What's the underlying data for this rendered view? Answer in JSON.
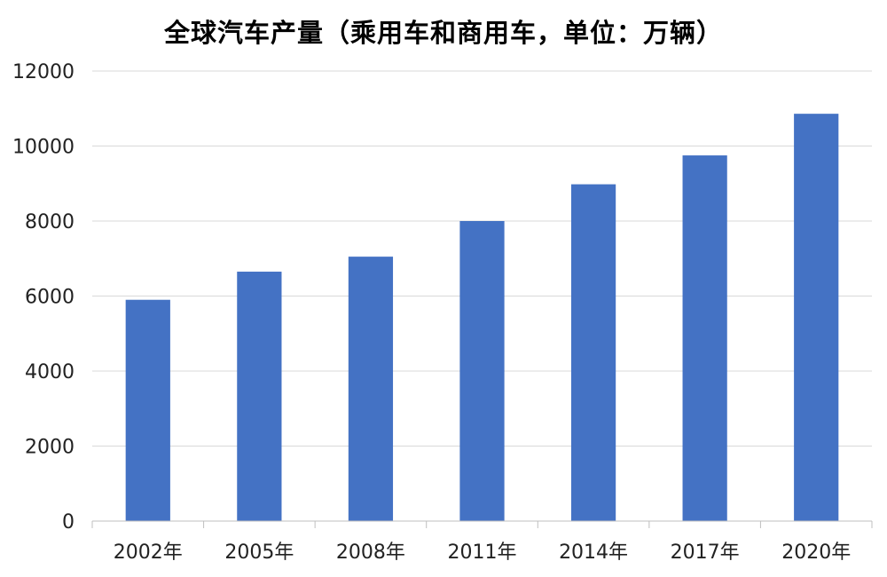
{
  "chart_data": {
    "type": "bar",
    "title": "全球汽车产量（乘用车和商用车，单位：万辆）",
    "categories": [
      "2002年",
      "2005年",
      "2008年",
      "2011年",
      "2014年",
      "2017年",
      "2020年"
    ],
    "values": [
      5900,
      6650,
      7050,
      8000,
      8980,
      9750,
      10860
    ],
    "xlabel": "",
    "ylabel": "",
    "ylim": [
      0,
      12000
    ],
    "yticks": [
      0,
      2000,
      4000,
      6000,
      8000,
      10000,
      12000
    ],
    "grid": true,
    "legend": "none",
    "colors": {
      "bar": "#4472C4",
      "grid": "#D9D9D9",
      "axis": "#BFBFBF",
      "text": "#222222"
    }
  }
}
